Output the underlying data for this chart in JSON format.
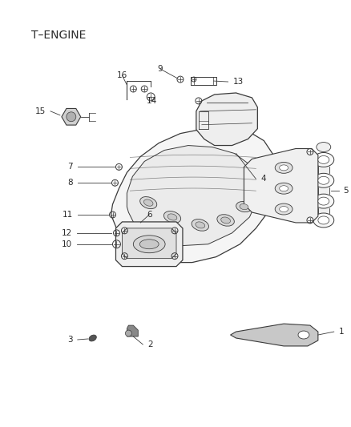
{
  "title": "T–ENGINE",
  "bg_color": "#ffffff",
  "line_color": "#3a3a3a",
  "text_color": "#2a2a2a",
  "title_fontsize": 10,
  "label_fontsize": 7.5
}
